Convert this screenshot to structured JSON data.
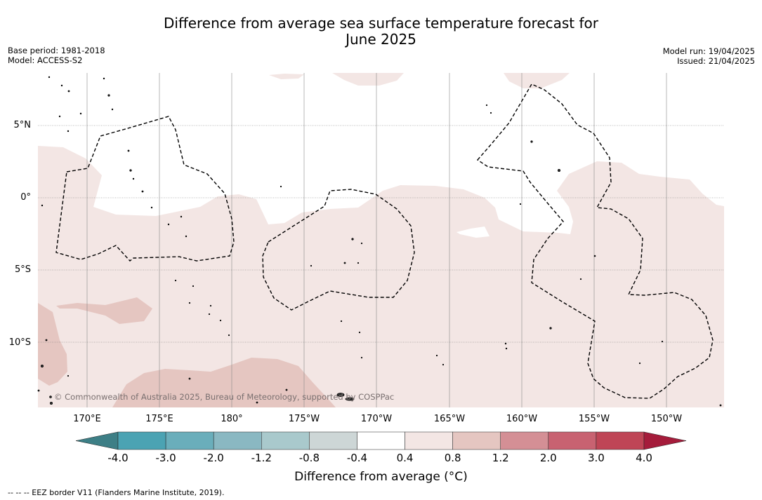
{
  "header": {
    "title_line1": "Difference from average sea surface temperature forecast for",
    "title_line2": "June 2025",
    "base_period": "Base period: 1981-2018",
    "model": "Model: ACCESS-S2",
    "model_run": "Model run: 19/04/2025",
    "issued": "Issued: 21/04/2025"
  },
  "map": {
    "lat_labels": [
      "5°N",
      "0°",
      "5°S",
      "10°S"
    ],
    "lon_labels": [
      "170°E",
      "175°E",
      "180°",
      "175°W",
      "170°W",
      "165°W",
      "160°W",
      "155°W",
      "150°W"
    ],
    "credit": "© Commonwealth of Australia 2025, Bureau of Meteorology, supported by COSPPac"
  },
  "colorbar": {
    "ticks": [
      "-4.0",
      "-3.0",
      "-2.0",
      "-1.2",
      "-0.8",
      "-0.4",
      "0.4",
      "0.8",
      "1.2",
      "2.0",
      "3.0",
      "4.0"
    ],
    "colors": [
      "#3d7f86",
      "#4ba3b3",
      "#6aaebb",
      "#8ab8c2",
      "#a9c9cc",
      "#cdd6d6",
      "#ffffff",
      "#f3e6e4",
      "#e5c6c1",
      "#d48f95",
      "#c86271",
      "#bf4556",
      "#a51c3b"
    ],
    "label": "Difference from average (°C)"
  },
  "footnote": "--  --  -- EEZ border V11 (Flanders Marine Institute, 2019)."
}
